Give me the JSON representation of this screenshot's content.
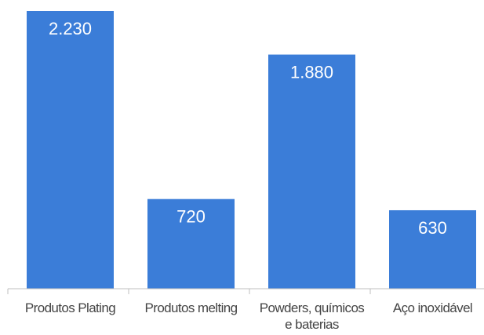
{
  "chart_data": {
    "type": "bar",
    "categories": [
      [
        "Produtos Plating"
      ],
      [
        "Produtos melting"
      ],
      [
        "Powders, químicos",
        "e baterias"
      ],
      [
        "Aço inoxidável"
      ]
    ],
    "values": [
      2230,
      720,
      1880,
      630
    ],
    "value_labels": [
      "2.230",
      "720",
      "1.880",
      "630"
    ],
    "ylim": [
      0,
      2300
    ],
    "grid": false,
    "legend": "none",
    "colors": {
      "bar": "#3b7dd8",
      "axis": "#bfbfbf",
      "text": "#444444",
      "value_text": "#ffffff"
    }
  }
}
